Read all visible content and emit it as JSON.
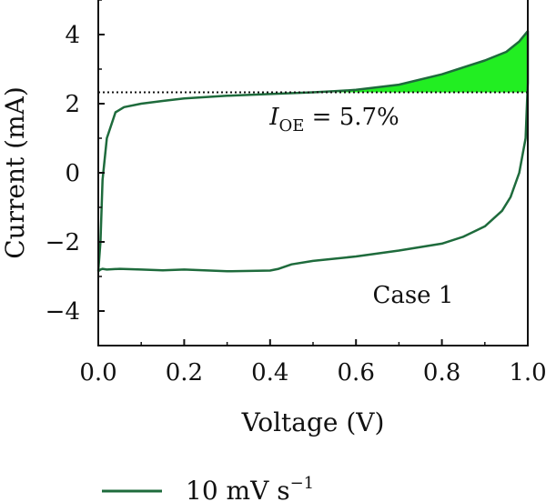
{
  "chart_data": {
    "type": "line",
    "xlabel": "Voltage (V)",
    "ylabel": "Current (mA)",
    "xlim": [
      0.0,
      1.0
    ],
    "ylim": [
      -5.0,
      5.0
    ],
    "x_ticks": [
      0.0,
      0.2,
      0.4,
      0.6,
      0.8,
      1.0
    ],
    "x_tick_labels": [
      "0.0",
      "0.2",
      "0.4",
      "0.6",
      "0.8",
      "1.0"
    ],
    "y_ticks": [
      -4,
      -2,
      0,
      2,
      4
    ],
    "y_tick_labels": [
      "−4",
      "−2",
      "0",
      "2",
      "4"
    ],
    "grid": false,
    "legend": {
      "position": "bottom-left",
      "label": "10 mV s",
      "label_sup": "−1"
    },
    "colors": {
      "curve": "#1e6b3c",
      "fill": "#22ee22",
      "reference_line": "#111111"
    },
    "series": [
      {
        "name": "10 mV s−1",
        "x": [
          0.0,
          0.005,
          0.01,
          0.02,
          0.04,
          0.06,
          0.1,
          0.15,
          0.2,
          0.3,
          0.4,
          0.5,
          0.55,
          0.6,
          0.7,
          0.8,
          0.85,
          0.9,
          0.95,
          0.98,
          1.0,
          1.0,
          0.995,
          0.98,
          0.96,
          0.94,
          0.9,
          0.85,
          0.8,
          0.7,
          0.6,
          0.5,
          0.45,
          0.42,
          0.4,
          0.3,
          0.2,
          0.15,
          0.1,
          0.05,
          0.02,
          0.01,
          0.005,
          0.0
        ],
        "y": [
          -2.85,
          -2.0,
          -0.2,
          1.0,
          1.75,
          1.9,
          2.0,
          2.08,
          2.15,
          2.23,
          2.28,
          2.33,
          2.36,
          2.4,
          2.55,
          2.85,
          3.05,
          3.25,
          3.5,
          3.8,
          4.1,
          2.6,
          1.0,
          0.0,
          -0.7,
          -1.1,
          -1.55,
          -1.85,
          -2.05,
          -2.25,
          -2.42,
          -2.55,
          -2.65,
          -2.78,
          -2.83,
          -2.85,
          -2.8,
          -2.82,
          -2.8,
          -2.78,
          -2.8,
          -2.78,
          -2.8,
          -2.85
        ]
      }
    ],
    "reference_line": {
      "y": 2.33,
      "style": "dotted"
    },
    "filled_region": {
      "between": "curve and reference line",
      "x_range": [
        0.5,
        1.0
      ]
    },
    "annotations": [
      {
        "text_main": "I",
        "text_sub": "OE",
        "text_rest": " = 5.7%",
        "x": 0.6,
        "y": 1.5
      },
      {
        "text": "Case 1",
        "x": 0.86,
        "y": -3.9
      }
    ]
  }
}
